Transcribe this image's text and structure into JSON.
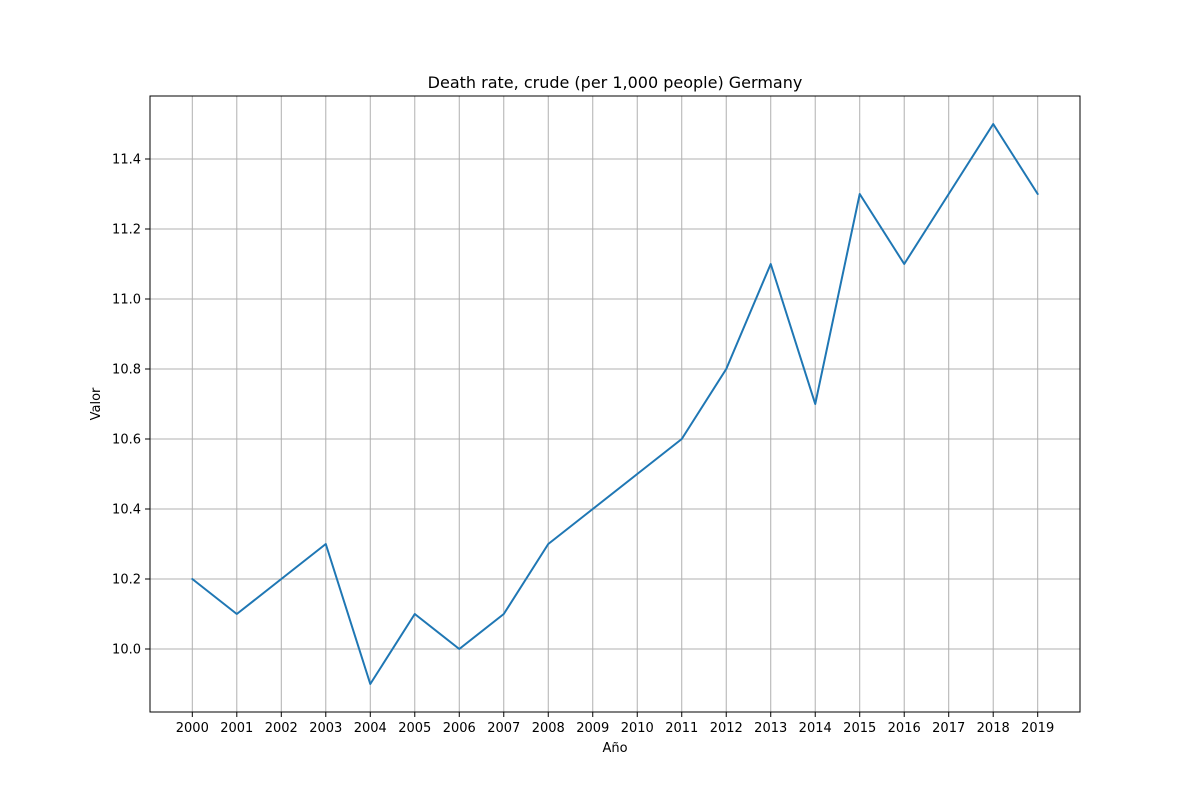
{
  "chart_data": {
    "type": "line",
    "title": "Death rate, crude (per 1,000 people) Germany",
    "xlabel": "Año",
    "ylabel": "Valor",
    "x": [
      "2000",
      "2001",
      "2002",
      "2003",
      "2004",
      "2005",
      "2006",
      "2007",
      "2008",
      "2009",
      "2010",
      "2011",
      "2012",
      "2013",
      "2014",
      "2015",
      "2016",
      "2017",
      "2018",
      "2019"
    ],
    "series": [
      {
        "values": [
          10.2,
          10.1,
          10.2,
          10.3,
          9.9,
          10.1,
          10.0,
          10.1,
          10.3,
          10.4,
          10.5,
          10.6,
          10.8,
          11.1,
          10.7,
          11.3,
          11.1,
          11.3,
          11.5,
          11.3
        ],
        "color": "#1f77b4"
      }
    ],
    "ylim": [
      9.82,
      11.58
    ],
    "yticks": [
      "10.0",
      "10.2",
      "10.4",
      "10.6",
      "10.8",
      "11.0",
      "11.2",
      "11.4"
    ],
    "grid": true
  }
}
